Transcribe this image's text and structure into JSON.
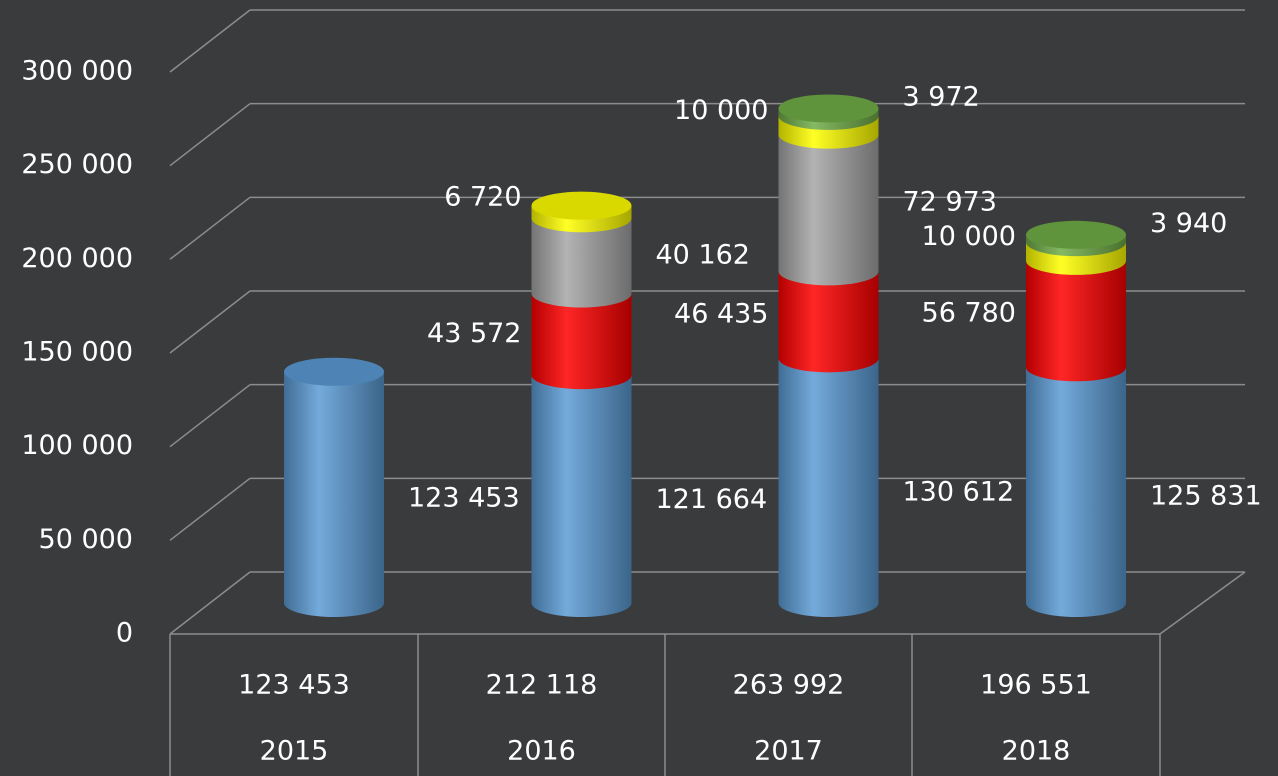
{
  "chart_data": {
    "type": "bar3d_stacked",
    "categories": [
      "2015",
      "2016",
      "2017",
      "2018"
    ],
    "series": [
      {
        "color": "#5b9bd5",
        "values": [
          123453,
          121664,
          130612,
          125831
        ],
        "value_labels": [
          "123 453",
          "121 664",
          "130 612",
          "125 831"
        ]
      },
      {
        "color": "#ff0000",
        "values": [
          null,
          43572,
          46435,
          56780
        ],
        "value_labels": [
          null,
          "43 572",
          "46 435",
          "56 780"
        ]
      },
      {
        "color": "#a6a6a6",
        "values": [
          null,
          40162,
          72973,
          null
        ],
        "value_labels": [
          null,
          "40 162",
          "72 973",
          null
        ]
      },
      {
        "color": "#ffff00",
        "values": [
          null,
          6720,
          10000,
          10000
        ],
        "value_labels": [
          null,
          "6 720",
          "10 000",
          "10 000"
        ]
      },
      {
        "color": "#70ad47",
        "values": [
          null,
          null,
          3972,
          3940
        ],
        "value_labels": [
          null,
          null,
          "3 972",
          "3 940"
        ]
      }
    ],
    "totals": [
      "123 453",
      "212 118",
      "263 992",
      "196 551"
    ],
    "ylim": [
      0,
      300000
    ],
    "yticks": [
      0,
      {
        "value": 50000,
        "label": "50 000"
      },
      {
        "value": 100000,
        "label": "100 000"
      },
      {
        "value": 150000,
        "label": "150 000"
      },
      {
        "value": 200000,
        "label": "200 000"
      },
      {
        "value": 250000,
        "label": "250 000"
      },
      {
        "value": 300000,
        "label": "300 000"
      }
    ],
    "grid": true
  }
}
